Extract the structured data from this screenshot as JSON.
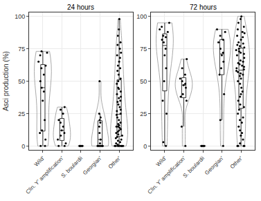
{
  "chart_data": [
    {
      "type": "violin",
      "title": "24 hours",
      "y_label": "Asci production (%)",
      "categories": [
        "Wild'",
        "Clin. Y' amplification'",
        "S. boulardii",
        "Georgian'",
        "Other'"
      ],
      "values": [
        [
          0,
          0,
          5,
          10,
          12,
          20,
          35,
          42,
          45,
          50,
          55,
          60,
          62,
          65,
          70,
          72,
          73
        ],
        [
          0,
          0,
          2,
          5,
          8,
          10,
          12,
          15,
          18,
          20,
          25,
          28,
          30
        ],
        [
          0,
          0,
          0,
          0,
          0
        ],
        [
          0,
          0,
          0,
          0,
          0,
          0,
          2,
          5,
          10,
          15,
          18,
          20,
          22,
          25,
          50
        ],
        [
          0,
          0,
          0,
          0,
          0,
          0,
          0,
          0,
          1,
          2,
          3,
          4,
          5,
          6,
          7,
          8,
          9,
          10,
          11,
          12,
          13,
          14,
          15,
          15,
          16,
          17,
          18,
          20,
          22,
          24,
          25,
          27,
          28,
          30,
          32,
          34,
          35,
          37,
          38,
          40,
          42,
          44,
          45,
          48,
          50,
          52,
          55,
          58,
          60,
          62,
          65,
          68,
          70,
          72,
          75,
          78,
          80,
          85,
          90,
          98
        ]
      ],
      "ylim": [
        -3,
        103
      ],
      "yticks": [
        0,
        25,
        50,
        75,
        100
      ],
      "grid": true
    },
    {
      "type": "violin",
      "title": "72 hours",
      "categories": [
        "Wild'",
        "Clin. Y' amplification'",
        "S. boulardii",
        "Georgian'",
        "Other'"
      ],
      "values": [
        [
          0,
          3,
          25,
          35,
          50,
          60,
          70,
          75,
          80,
          82,
          84,
          85,
          88,
          90,
          92,
          95
        ],
        [
          0,
          15,
          35,
          38,
          40,
          45,
          47,
          48,
          50,
          52,
          55,
          60,
          67
        ],
        [
          0,
          0,
          0,
          0,
          0
        ],
        [
          0,
          20,
          40,
          55,
          60,
          65,
          70,
          72,
          75,
          80,
          82,
          85,
          88,
          90
        ],
        [
          0,
          0,
          0,
          0,
          2,
          5,
          8,
          10,
          12,
          15,
          18,
          20,
          22,
          25,
          28,
          30,
          32,
          35,
          38,
          40,
          42,
          45,
          48,
          50,
          52,
          54,
          55,
          56,
          57,
          58,
          59,
          60,
          61,
          62,
          63,
          64,
          65,
          66,
          68,
          70,
          71,
          72,
          73,
          74,
          75,
          76,
          77,
          78,
          79,
          80,
          82,
          84,
          85,
          87,
          88,
          90,
          92,
          95,
          98,
          100
        ]
      ],
      "ylim": [
        -3,
        103
      ],
      "yticks": [
        0,
        25,
        50,
        75,
        100
      ],
      "grid": true
    }
  ]
}
